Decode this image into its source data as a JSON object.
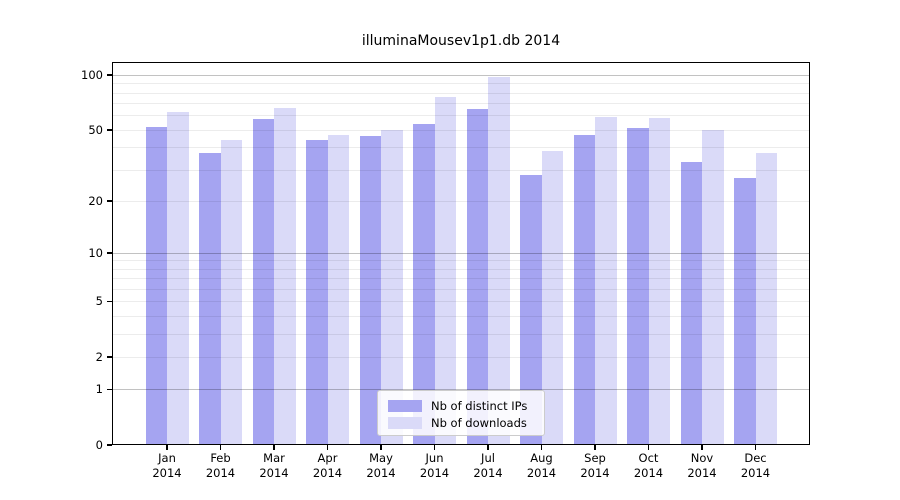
{
  "chart_data": {
    "type": "bar",
    "title": "illuminaMousev1p1.db 2014",
    "categories": [
      "Jan",
      "Feb",
      "Mar",
      "Apr",
      "May",
      "Jun",
      "Jul",
      "Aug",
      "Sep",
      "Oct",
      "Nov",
      "Dec"
    ],
    "category_year": "2014",
    "series": [
      {
        "name": "Nb of distinct IPs",
        "color": "#a5a4f1",
        "values": [
          52,
          37,
          57,
          44,
          46,
          54,
          65,
          28,
          47,
          51,
          33,
          27
        ]
      },
      {
        "name": "Nb of downloads",
        "color": "#dadaf8",
        "values": [
          63,
          44,
          66,
          47,
          50,
          76,
          97,
          38,
          59,
          58,
          50,
          37
        ]
      }
    ],
    "y_axis": {
      "scale": "log10(1+y)",
      "tick_labels": [
        "100",
        "50",
        "20",
        "10",
        "5",
        "2",
        "1",
        "0"
      ],
      "tick_values": [
        100,
        50,
        20,
        10,
        5,
        2,
        1,
        0
      ],
      "major_gridlines": [
        1,
        10,
        100
      ],
      "minor_gridlines": [
        2,
        3,
        4,
        5,
        6,
        7,
        8,
        9,
        20,
        30,
        40,
        50,
        60,
        70,
        80,
        90
      ],
      "top_value": 103
    },
    "legend": {
      "position": "bottom-center",
      "entries": [
        "Nb of distinct IPs",
        "Nb of downloads"
      ]
    },
    "grid": "horizontal-only",
    "background_color": "#ffffff",
    "text_color": "#000000"
  }
}
